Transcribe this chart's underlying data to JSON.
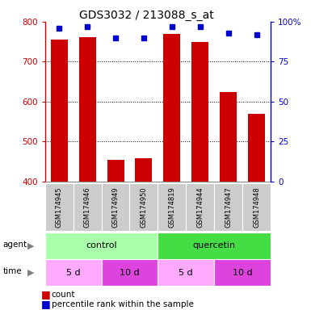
{
  "title": "GDS3032 / 213088_s_at",
  "samples": [
    "GSM174945",
    "GSM174946",
    "GSM174949",
    "GSM174950",
    "GSM174819",
    "GSM174944",
    "GSM174947",
    "GSM174948"
  ],
  "counts": [
    755,
    762,
    453,
    458,
    770,
    750,
    624,
    570
  ],
  "percentile_ranks": [
    96,
    97,
    90,
    90,
    97,
    97,
    93,
    92
  ],
  "ylim_left": [
    400,
    800
  ],
  "ylim_right": [
    0,
    100
  ],
  "yticks_left": [
    400,
    500,
    600,
    700,
    800
  ],
  "yticks_right": [
    0,
    25,
    50,
    75,
    100
  ],
  "bar_color": "#cc0000",
  "dot_color": "#0000cc",
  "agent_groups": [
    {
      "label": "control",
      "span": [
        0,
        4
      ],
      "color": "#aaffaa"
    },
    {
      "label": "quercetin",
      "span": [
        4,
        8
      ],
      "color": "#44dd44"
    }
  ],
  "time_groups": [
    {
      "label": "5 d",
      "span": [
        0,
        2
      ],
      "color": "#ffaaff"
    },
    {
      "label": "10 d",
      "span": [
        2,
        4
      ],
      "color": "#dd44dd"
    },
    {
      "label": "5 d",
      "span": [
        4,
        6
      ],
      "color": "#ffaaff"
    },
    {
      "label": "10 d",
      "span": [
        6,
        8
      ],
      "color": "#dd44dd"
    }
  ],
  "left_axis_color": "#cc0000",
  "right_axis_color": "#0000cc",
  "grid_color": "#000000",
  "sample_bg_color": "#cccccc",
  "grid_yticks": [
    500,
    600,
    700
  ]
}
